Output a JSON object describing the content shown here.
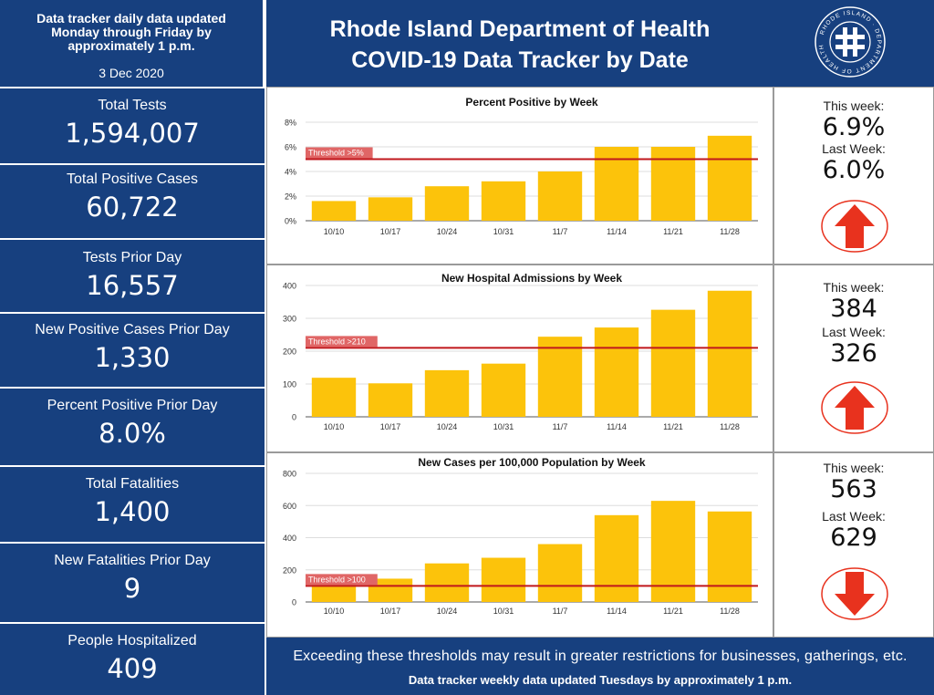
{
  "top_left": {
    "line1": "Data tracker daily data updated",
    "line2": "Monday through Friday by",
    "line3": "approximately 1 p.m.",
    "date": "3 Dec 2020"
  },
  "header": {
    "title_line1": "Rhode Island Department of Health",
    "title_line2": "COVID-19 Data Tracker by Date",
    "seal_text": "RHODE ISLAND DEPARTMENT OF HEALTH"
  },
  "stats": [
    {
      "label": "Total Tests",
      "value": "1,594,007"
    },
    {
      "label": "Total Positive Cases",
      "value": "60,722"
    },
    {
      "label": "Tests Prior Day",
      "value": "16,557"
    },
    {
      "label": "New Positive Cases Prior Day",
      "value": "1,330"
    },
    {
      "label": "Percent Positive Prior Day",
      "value": "8.0%"
    },
    {
      "label": "Total Fatalities",
      "value": "1,400"
    },
    {
      "label": "New Fatalities Prior Day",
      "value": "9"
    },
    {
      "label": "People Hospitalized",
      "value": "409"
    }
  ],
  "sides": [
    {
      "this_label": "This week:",
      "this_value": "6.9%",
      "last_label": "Last Week:",
      "last_value": "6.0%",
      "direction": "up"
    },
    {
      "this_label": "This week:",
      "this_value": "384",
      "last_label": "Last Week:",
      "last_value": "326",
      "direction": "up"
    },
    {
      "this_label": "This week:",
      "this_value": "563",
      "last_label": "Last Week:",
      "last_value": "629",
      "direction": "down"
    }
  ],
  "footer": {
    "line1": "Exceeding these thresholds may result in greater restrictions for businesses, gatherings, etc.",
    "line2": "Data tracker weekly data updated Tuesdays by approximately 1 p.m."
  },
  "colors": {
    "navy": "#17407f",
    "bar": "#fcc30b",
    "threshold_line": "#c0171c",
    "threshold_label_bg": "#e06666",
    "arrow": "#e8321e"
  },
  "chart_data": [
    {
      "type": "bar",
      "title": "Percent Positive by Week",
      "categories": [
        "10/10",
        "10/17",
        "10/24",
        "10/31",
        "11/7",
        "11/14",
        "11/21",
        "11/28"
      ],
      "values": [
        1.6,
        1.9,
        2.8,
        3.2,
        4.0,
        6.0,
        6.0,
        6.9
      ],
      "ylim": [
        0,
        8
      ],
      "yticks": [
        0,
        2,
        4,
        6,
        8
      ],
      "ytick_labels": [
        "0%",
        "2%",
        "4%",
        "6%",
        "8%"
      ],
      "threshold": 5,
      "threshold_label": "Threshold >5%",
      "grid": true
    },
    {
      "type": "bar",
      "title": "New Hospital Admissions by Week",
      "categories": [
        "10/10",
        "10/17",
        "10/24",
        "10/31",
        "11/7",
        "11/14",
        "11/21",
        "11/28"
      ],
      "values": [
        119,
        102,
        142,
        162,
        244,
        272,
        326,
        384
      ],
      "ylim": [
        0,
        400
      ],
      "yticks": [
        0,
        100,
        200,
        300,
        400
      ],
      "ytick_labels": [
        "0",
        "100",
        "200",
        "300",
        "400"
      ],
      "threshold": 210,
      "threshold_label": "Threshold >210",
      "grid": true
    },
    {
      "type": "bar",
      "title": "New Cases per 100,000 Population by Week",
      "categories": [
        "10/10",
        "10/17",
        "10/24",
        "10/31",
        "11/7",
        "11/14",
        "11/21",
        "11/28"
      ],
      "values": [
        120,
        145,
        240,
        275,
        360,
        540,
        629,
        563
      ],
      "ylim": [
        0,
        800
      ],
      "yticks": [
        0,
        200,
        400,
        600,
        800
      ],
      "ytick_labels": [
        "0",
        "200",
        "400",
        "600",
        "800"
      ],
      "threshold": 100,
      "threshold_label": "Threshold >100",
      "grid": true
    }
  ]
}
